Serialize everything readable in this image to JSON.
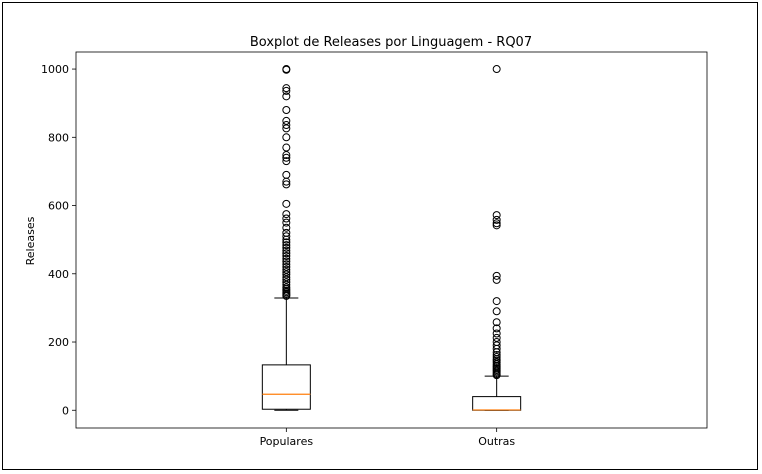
{
  "chart_data": {
    "type": "boxplot",
    "title": "Boxplot de Releases por Linguagem - RQ07",
    "xlabel": "",
    "ylabel": "Releases",
    "ylim": [
      -52,
      1050
    ],
    "yticks": [
      0,
      200,
      400,
      600,
      800,
      1000
    ],
    "grid": false,
    "categories": [
      "Populares",
      "Outras"
    ],
    "colors": {
      "box": "#000000",
      "median": "#ff7f0e"
    },
    "series": [
      {
        "category": "Populares",
        "whisker_low": 0,
        "q1": 3,
        "median": 47,
        "q3": 133,
        "whisker_high": 329,
        "outliers": [
          335,
          338,
          342,
          346,
          350,
          355,
          360,
          368,
          375,
          383,
          390,
          398,
          405,
          412,
          420,
          428,
          436,
          444,
          452,
          460,
          468,
          476,
          484,
          492,
          500,
          510,
          520,
          535,
          550,
          562,
          575,
          605,
          662,
          670,
          690,
          730,
          740,
          748,
          770,
          800,
          826,
          836,
          848,
          880,
          920,
          936,
          944,
          998,
          1000
        ]
      },
      {
        "category": "Outras",
        "whisker_low": 0,
        "q1": 0,
        "median": 1,
        "q3": 40,
        "whisker_high": 100,
        "outliers": [
          103,
          106,
          110,
          114,
          118,
          122,
          126,
          130,
          135,
          140,
          145,
          150,
          156,
          162,
          170,
          180,
          190,
          200,
          212,
          225,
          240,
          258,
          290,
          320,
          382,
          394,
          542,
          548,
          558,
          572,
          1000
        ]
      }
    ]
  }
}
